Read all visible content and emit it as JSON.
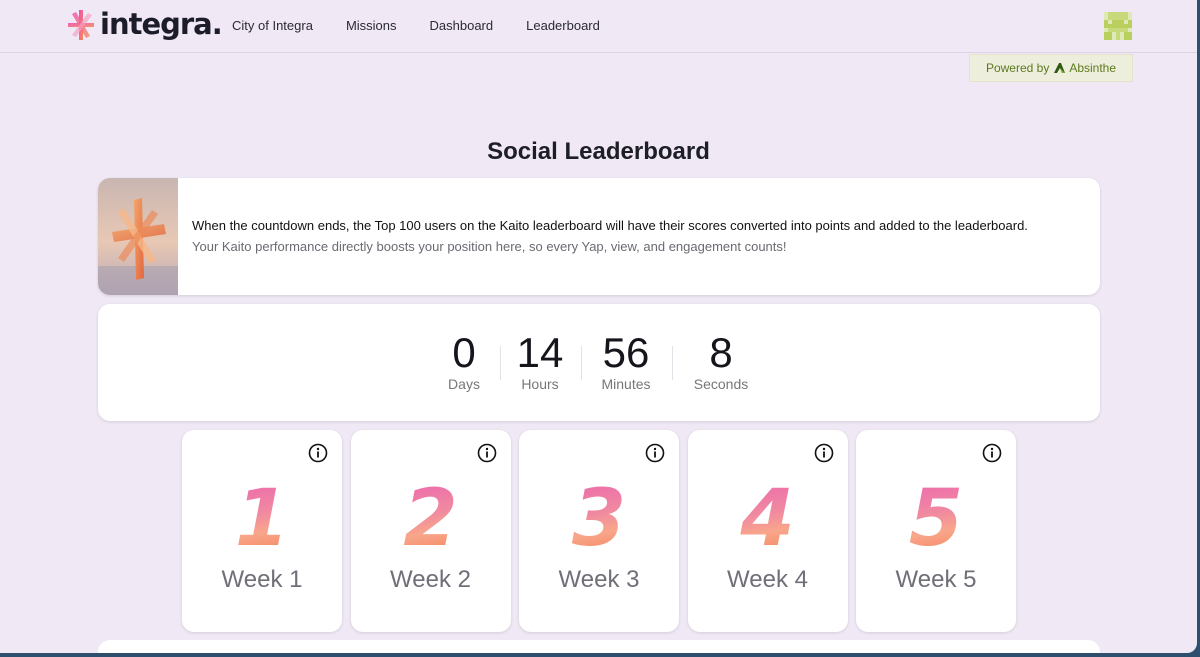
{
  "brand": {
    "name": "integra."
  },
  "nav": {
    "links": [
      {
        "label": "City of Integra"
      },
      {
        "label": "Missions"
      },
      {
        "label": "Dashboard"
      },
      {
        "label": "Leaderboard"
      }
    ]
  },
  "powered_by": {
    "prefix": "Powered by",
    "name": "Absinthe"
  },
  "page": {
    "title": "Social Leaderboard"
  },
  "info": {
    "line1": "When the countdown ends, the Top 100 users on the Kaito leaderboard will have their scores converted into points and added to the leaderboard.",
    "line2": "Your Kaito performance directly boosts your position here, so every Yap, view, and engagement counts!"
  },
  "countdown": {
    "days": {
      "value": "0",
      "label": "Days"
    },
    "hours": {
      "value": "14",
      "label": "Hours"
    },
    "minutes": {
      "value": "56",
      "label": "Minutes"
    },
    "seconds": {
      "value": "8",
      "label": "Seconds"
    }
  },
  "weeks": [
    {
      "number": "1",
      "label": "Week 1"
    },
    {
      "number": "2",
      "label": "Week 2"
    },
    {
      "number": "3",
      "label": "Week 3"
    },
    {
      "number": "4",
      "label": "Week 4"
    },
    {
      "number": "5",
      "label": "Week 5"
    }
  ],
  "colors": {
    "background": "#f0e9f5",
    "card": "#ffffff",
    "gradient_pink": "#ec5bb3",
    "gradient_orange": "#ef6a3e",
    "powered_green": "#5b7a1f"
  },
  "icons": {
    "logo": "integra-logo-icon",
    "avatar": "pixel-avatar-icon",
    "absinthe": "absinthe-logo-icon",
    "info": "info-circle-icon"
  }
}
